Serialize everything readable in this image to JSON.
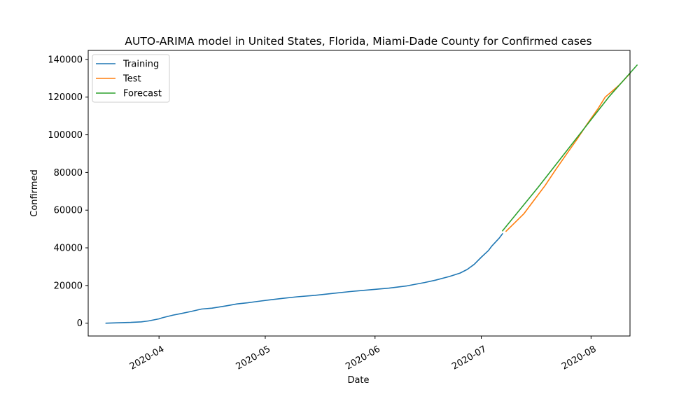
{
  "chart_data": {
    "type": "line",
    "title": "AUTO-ARIMA model in United States, Florida, Miami-Dade County for Confirmed cases",
    "xlabel": "Date",
    "ylabel": "Confirmed",
    "x_type": "date",
    "xlim": [
      "2020-03-12",
      "2020-08-12"
    ],
    "ylim": [
      -6800,
      144800
    ],
    "x_ticks": [
      "2020-04-01",
      "2020-05-01",
      "2020-06-01",
      "2020-07-01",
      "2020-08-01"
    ],
    "x_tick_labels": [
      "2020-04",
      "2020-05",
      "2020-06",
      "2020-07",
      "2020-08"
    ],
    "y_ticks": [
      0,
      20000,
      40000,
      60000,
      80000,
      100000,
      120000,
      140000
    ],
    "y_tick_labels": [
      "0",
      "20000",
      "40000",
      "60000",
      "80000",
      "100000",
      "120000",
      "140000"
    ],
    "grid": false,
    "legend": "top-left",
    "series": [
      {
        "name": "Training",
        "color": "#1f77b4",
        "points": [
          [
            "2020-03-17",
            0
          ],
          [
            "2020-03-20",
            200
          ],
          [
            "2020-03-24",
            400
          ],
          [
            "2020-03-27",
            700
          ],
          [
            "2020-03-29",
            1200
          ],
          [
            "2020-04-01",
            2300
          ],
          [
            "2020-04-02",
            2900
          ],
          [
            "2020-04-05",
            4300
          ],
          [
            "2020-04-07",
            5000
          ],
          [
            "2020-04-10",
            6200
          ],
          [
            "2020-04-13",
            7500
          ],
          [
            "2020-04-16",
            8000
          ],
          [
            "2020-04-20",
            9200
          ],
          [
            "2020-04-23",
            10200
          ],
          [
            "2020-04-26",
            10800
          ],
          [
            "2020-04-29",
            11600
          ],
          [
            "2020-05-02",
            12300
          ],
          [
            "2020-05-06",
            13200
          ],
          [
            "2020-05-10",
            14000
          ],
          [
            "2020-05-15",
            14800
          ],
          [
            "2020-05-20",
            15800
          ],
          [
            "2020-05-25",
            16800
          ],
          [
            "2020-05-31",
            17800
          ],
          [
            "2020-06-05",
            18600
          ],
          [
            "2020-06-10",
            19800
          ],
          [
            "2020-06-15",
            21600
          ],
          [
            "2020-06-18",
            22800
          ],
          [
            "2020-06-22",
            24800
          ],
          [
            "2020-06-25",
            26600
          ],
          [
            "2020-06-27",
            28500
          ],
          [
            "2020-06-29",
            31200
          ],
          [
            "2020-07-01",
            35000
          ],
          [
            "2020-07-03",
            38500
          ],
          [
            "2020-07-04",
            41000
          ],
          [
            "2020-07-06",
            45000
          ],
          [
            "2020-07-07",
            47500
          ]
        ]
      },
      {
        "name": "Test",
        "color": "#ff7f0e",
        "points": [
          [
            "2020-07-08",
            48800
          ],
          [
            "2020-07-10",
            52500
          ],
          [
            "2020-07-13",
            58000
          ],
          [
            "2020-07-16",
            65500
          ],
          [
            "2020-07-19",
            73000
          ],
          [
            "2020-07-22",
            81500
          ],
          [
            "2020-07-25",
            89500
          ],
          [
            "2020-07-28",
            97500
          ],
          [
            "2020-07-31",
            106000
          ],
          [
            "2020-08-03",
            114000
          ],
          [
            "2020-08-05",
            120000
          ],
          [
            "2020-08-07",
            123200
          ],
          [
            "2020-08-09",
            126500
          ],
          [
            "2020-08-11",
            130500
          ],
          [
            "2020-08-12",
            132500
          ]
        ]
      },
      {
        "name": "Forecast",
        "color": "#2ca02c",
        "points": [
          [
            "2020-07-07",
            49000
          ],
          [
            "2020-07-17",
            72000
          ],
          [
            "2020-07-27",
            96000
          ],
          [
            "2020-08-06",
            120000
          ],
          [
            "2020-08-14",
            137000
          ]
        ]
      }
    ]
  }
}
